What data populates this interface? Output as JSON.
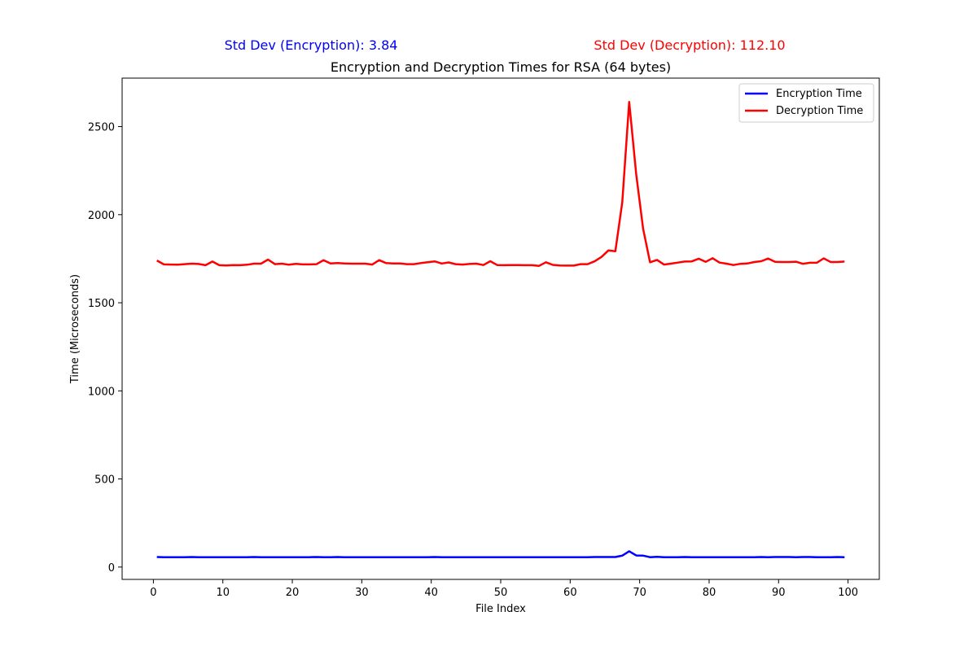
{
  "chart_data": {
    "type": "line",
    "title": "Encryption and Decryption Times for RSA (64 bytes)",
    "xlabel": "File Index",
    "ylabel": "Time (Microseconds)",
    "xlim": [
      -4.5,
      104.5
    ],
    "ylim": [
      -70,
      2775
    ],
    "xticks": [
      0,
      10,
      20,
      30,
      40,
      50,
      60,
      70,
      80,
      90,
      100
    ],
    "yticks": [
      0,
      500,
      1000,
      1500,
      2000,
      2500
    ],
    "grid": false,
    "legend_position": "upper right",
    "annotations": {
      "std_enc": {
        "text": "Std Dev (Encryption): 3.84",
        "color": "#0000ff"
      },
      "std_dec": {
        "text": "Std Dev (Decryption): 112.10",
        "color": "#ff0000"
      }
    },
    "x": [
      0.5,
      1.5,
      2.5,
      3.5,
      4.5,
      5.5,
      6.5,
      7.5,
      8.5,
      9.5,
      10.5,
      11.5,
      12.5,
      13.5,
      14.5,
      15.5,
      16.5,
      17.5,
      18.5,
      19.5,
      20.5,
      21.5,
      22.5,
      23.5,
      24.5,
      25.5,
      26.5,
      27.5,
      28.5,
      29.5,
      30.5,
      31.5,
      32.5,
      33.5,
      34.5,
      35.5,
      36.5,
      37.5,
      38.5,
      39.5,
      40.5,
      41.5,
      42.5,
      43.5,
      44.5,
      45.5,
      46.5,
      47.5,
      48.5,
      49.5,
      50.5,
      51.5,
      52.5,
      53.5,
      54.5,
      55.5,
      56.5,
      57.5,
      58.5,
      59.5,
      60.5,
      61.5,
      62.5,
      63.5,
      64.5,
      65.5,
      66.5,
      67.5,
      68.5,
      69.5,
      70.5,
      71.5,
      72.5,
      73.5,
      74.5,
      75.5,
      76.5,
      77.5,
      78.5,
      79.5,
      80.5,
      81.5,
      82.5,
      83.5,
      84.5,
      85.5,
      86.5,
      87.5,
      88.5,
      89.5,
      90.5,
      91.5,
      92.5,
      93.5,
      94.5,
      95.5,
      96.5,
      97.5,
      98.5,
      99.5
    ],
    "series": [
      {
        "name": "Encryption Time",
        "color": "#0000ff",
        "values": [
          57,
          56,
          56,
          56,
          56,
          57,
          56,
          56,
          56,
          56,
          56,
          56,
          56,
          56,
          57,
          56,
          56,
          56,
          56,
          56,
          56,
          56,
          56,
          57,
          56,
          56,
          57,
          56,
          56,
          56,
          56,
          56,
          56,
          56,
          56,
          56,
          56,
          56,
          56,
          56,
          57,
          56,
          56,
          56,
          56,
          56,
          56,
          56,
          56,
          56,
          56,
          56,
          56,
          56,
          56,
          56,
          56,
          56,
          56,
          56,
          56,
          56,
          56,
          57,
          57,
          57,
          57,
          65,
          90,
          66,
          65,
          56,
          58,
          56,
          56,
          56,
          57,
          56,
          56,
          56,
          56,
          56,
          56,
          56,
          56,
          56,
          56,
          57,
          56,
          57,
          57,
          57,
          56,
          57,
          57,
          56,
          56,
          56,
          57,
          56
        ]
      },
      {
        "name": "Decryption Time",
        "color": "#ff0000",
        "values": [
          1740,
          1718,
          1717,
          1716,
          1719,
          1722,
          1720,
          1713,
          1734,
          1713,
          1712,
          1714,
          1713,
          1716,
          1722,
          1722,
          1745,
          1719,
          1722,
          1716,
          1721,
          1718,
          1718,
          1719,
          1742,
          1723,
          1725,
          1723,
          1722,
          1722,
          1722,
          1717,
          1742,
          1725,
          1723,
          1723,
          1719,
          1719,
          1725,
          1730,
          1735,
          1723,
          1729,
          1719,
          1717,
          1720,
          1722,
          1714,
          1736,
          1714,
          1713,
          1714,
          1714,
          1713,
          1713,
          1709,
          1730,
          1715,
          1712,
          1711,
          1711,
          1719,
          1719,
          1735,
          1760,
          1797,
          1792,
          2070,
          2640,
          2230,
          1920,
          1730,
          1743,
          1717,
          1722,
          1728,
          1734,
          1735,
          1750,
          1732,
          1753,
          1728,
          1722,
          1714,
          1721,
          1723,
          1731,
          1736,
          1751,
          1732,
          1731,
          1731,
          1733,
          1721,
          1727,
          1727,
          1752,
          1731,
          1731,
          1734
        ]
      }
    ]
  }
}
